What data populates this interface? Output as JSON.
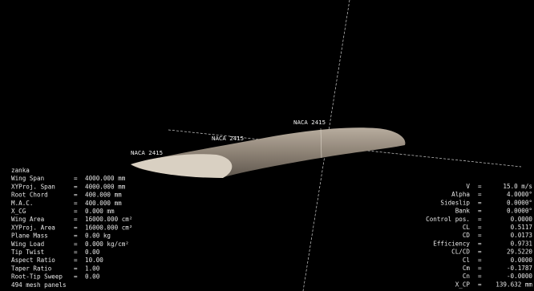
{
  "separator": "=",
  "foil_labels": [
    "NACA 2415",
    "NACA 2415",
    "NACA 2415"
  ],
  "left_panel": {
    "name": "zanka",
    "rows": [
      {
        "label": "Wing Span",
        "value": "4000.000 mm"
      },
      {
        "label": "XYProj. Span",
        "value": "4000.000 mm"
      },
      {
        "label": "Root Chord",
        "value": "400.000 mm"
      },
      {
        "label": "M.A.C.",
        "value": "400.000 mm"
      },
      {
        "label": "X_CG",
        "value": "0.000 mm"
      },
      {
        "label": "Wing Area",
        "value": "16000.000 cm²"
      },
      {
        "label": "XYProj. Area",
        "value": "16000.000 cm²"
      },
      {
        "label": "Plane Mass",
        "value": "0.00 kg"
      },
      {
        "label": "Wing Load",
        "value": "0.000 kg/cm²"
      },
      {
        "label": "Tip Twist",
        "value": "0.00"
      },
      {
        "label": "Aspect Ratio",
        "value": "10.00"
      },
      {
        "label": "Taper Ratio",
        "value": "1.00"
      },
      {
        "label": "Root-Tip Sweep",
        "value": "0.00"
      }
    ],
    "footer": "494 mesh panels"
  },
  "right_panel": {
    "rows": [
      {
        "label": "V",
        "value": "15.0 m/s"
      },
      {
        "label": "Alpha",
        "value": "4.0000°"
      },
      {
        "label": "Sideslip",
        "value": "0.0000°"
      },
      {
        "label": "Bank",
        "value": "0.0000°"
      },
      {
        "label": "Control pos.",
        "value": "0.0000"
      },
      {
        "label": "CL",
        "value": "0.5117"
      },
      {
        "label": "CD",
        "value": "0.0173"
      },
      {
        "label": "Efficiency",
        "value": "0.9731"
      },
      {
        "label": "CL/CD",
        "value": "29.5220"
      },
      {
        "label": "Cl",
        "value": "0.0000"
      },
      {
        "label": "Cm",
        "value": "-0.1787"
      },
      {
        "label": "Cn",
        "value": "-0.0000"
      },
      {
        "label": "X_CP",
        "value": "139.632 mm"
      }
    ]
  }
}
